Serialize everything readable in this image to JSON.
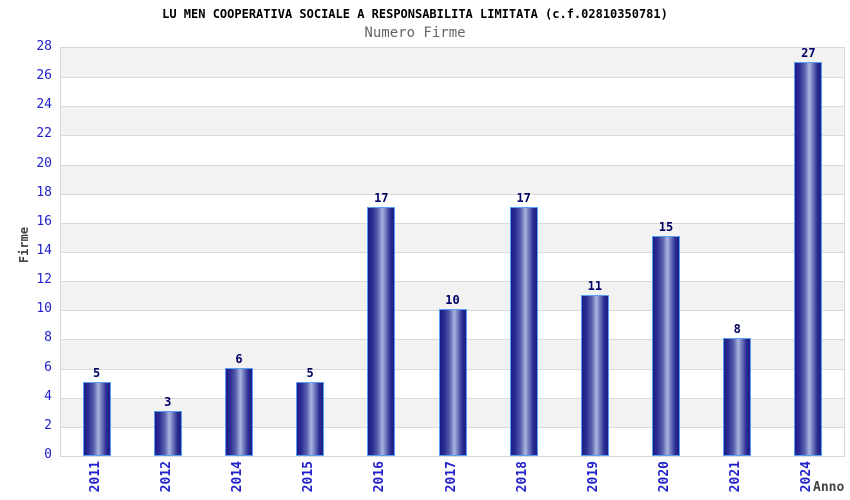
{
  "chart_data": {
    "type": "bar",
    "title": "LU MEN COOPERATIVA SOCIALE A RESPONSABILITA LIMITATA (c.f.02810350781)",
    "subtitle": "Numero Firme",
    "xlabel": "Anno",
    "ylabel": "Firme",
    "categories": [
      "2011",
      "2012",
      "2014",
      "2015",
      "2016",
      "2017",
      "2018",
      "2019",
      "2020",
      "2021",
      "2024"
    ],
    "values": [
      5,
      3,
      6,
      5,
      17,
      10,
      17,
      11,
      15,
      8,
      27
    ],
    "ylim": [
      0,
      28
    ],
    "ytick_step": 2,
    "grid": true,
    "legend": null,
    "colors": {
      "bar_dark": "#1d1d84",
      "bar_highlight": "#aab4e0",
      "bar_border": "#55a0f5",
      "axis_text": "#2222cc",
      "value_label": "#000066",
      "band_gray": "#f2f2f2",
      "grid_line": "#d9d9d9",
      "title": "#000000",
      "subtitle": "#666666",
      "axis_label": "#444444"
    }
  }
}
